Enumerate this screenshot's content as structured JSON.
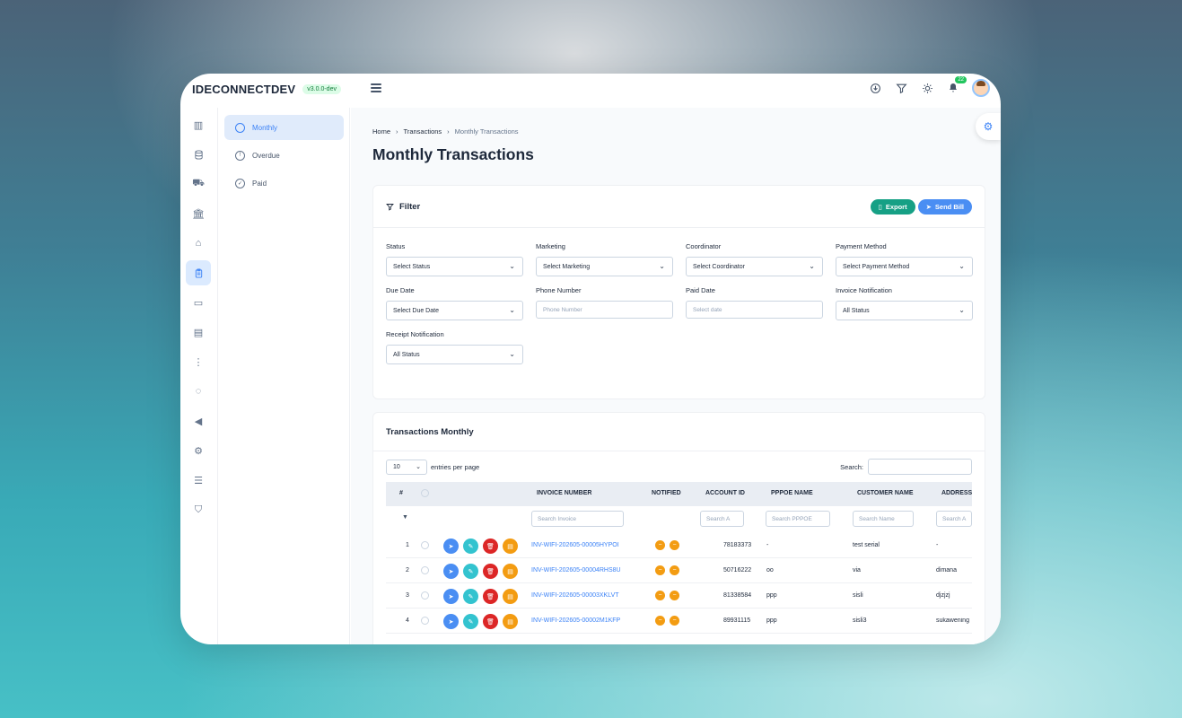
{
  "app": {
    "brand": "IDECONNECTDEV",
    "version": "v3.0.0-dev"
  },
  "topbar": {
    "icons": [
      "download-icon",
      "filter-settings-icon",
      "sun-icon",
      "bell-icon"
    ],
    "notification_count": "22"
  },
  "rail": {
    "items": [
      {
        "icon": "chart-icon",
        "active": false
      },
      {
        "icon": "database-icon",
        "active": false
      },
      {
        "icon": "truck-icon",
        "active": false
      },
      {
        "icon": "bank-icon",
        "active": false
      },
      {
        "icon": "router-icon",
        "active": false
      },
      {
        "icon": "clipboard-icon",
        "active": true
      },
      {
        "icon": "ticket-icon",
        "active": false
      },
      {
        "icon": "document-icon",
        "active": false
      },
      {
        "icon": "hierarchy-icon",
        "active": false
      },
      {
        "icon": "network-icon",
        "active": false
      },
      {
        "icon": "megaphone-icon",
        "active": false
      },
      {
        "icon": "gear-icon",
        "active": false
      },
      {
        "icon": "list-icon",
        "active": false
      },
      {
        "icon": "shield-icon",
        "active": false
      }
    ]
  },
  "submenu": {
    "items": [
      {
        "label": "Monthly",
        "icon": "badge-icon",
        "active": true
      },
      {
        "label": "Overdue",
        "icon": "alert-icon",
        "active": false
      },
      {
        "label": "Paid",
        "icon": "check-circle-icon",
        "active": false
      }
    ]
  },
  "breadcrumb": {
    "home": "Home",
    "transactions": "Transactions",
    "current": "Monthly Transactions"
  },
  "page_title": "Monthly Transactions",
  "filter": {
    "title": "Filter",
    "export_label": "Export",
    "send_bill_label": "Send Bill",
    "status": {
      "label": "Status",
      "value": "Select Status"
    },
    "marketing": {
      "label": "Marketing",
      "value": "Select Marketing"
    },
    "coordinator": {
      "label": "Coordinator",
      "value": "Select Coordinator"
    },
    "payment_method": {
      "label": "Payment Method",
      "value": "Select Payment Method"
    },
    "due_date": {
      "label": "Due Date",
      "value": "Select Due Date"
    },
    "phone_number": {
      "label": "Phone Number",
      "placeholder": "Phone Number"
    },
    "paid_date": {
      "label": "Paid Date",
      "placeholder": "Select date"
    },
    "invoice_notification": {
      "label": "Invoice Notification",
      "value": "All Status"
    },
    "receipt_notification": {
      "label": "Receipt Notification",
      "value": "All Status"
    }
  },
  "table": {
    "title": "Transactions Monthly",
    "length_value": "10",
    "length_suffix": "entries per page",
    "search_label": "Search:",
    "columns": {
      "num": "#",
      "invoice": "INVOICE NUMBER",
      "notified": "NOTIFIED",
      "account": "ACCOUNT ID",
      "pppoe": "PPPOE NAME",
      "customer": "CUSTOMER NAME",
      "address": "ADDRESS"
    },
    "column_filters": {
      "invoice": "Search Invoice",
      "account": "Search A",
      "pppoe": "Search PPPOE",
      "customer": "Search Name",
      "address": "Search A"
    },
    "rows": [
      {
        "no": "1",
        "invoice": "INV-WIFI-202605-00005HYPOI",
        "account": "78183373",
        "pppoe": "-",
        "customer": "test serial",
        "address": "-"
      },
      {
        "no": "2",
        "invoice": "INV-WIFI-202605-00004RHS8U",
        "account": "50716222",
        "pppoe": "oo",
        "customer": "via",
        "address": "dimana"
      },
      {
        "no": "3",
        "invoice": "INV-WIFI-202605-00003XKLVT",
        "account": "81338584",
        "pppoe": "ppp",
        "customer": "sisli",
        "address": "djzjzj"
      },
      {
        "no": "4",
        "invoice": "INV-WIFI-202605-00002M1KFP",
        "account": "89931115",
        "pppoe": "ppp",
        "customer": "sisli3",
        "address": "sukawening"
      }
    ]
  }
}
